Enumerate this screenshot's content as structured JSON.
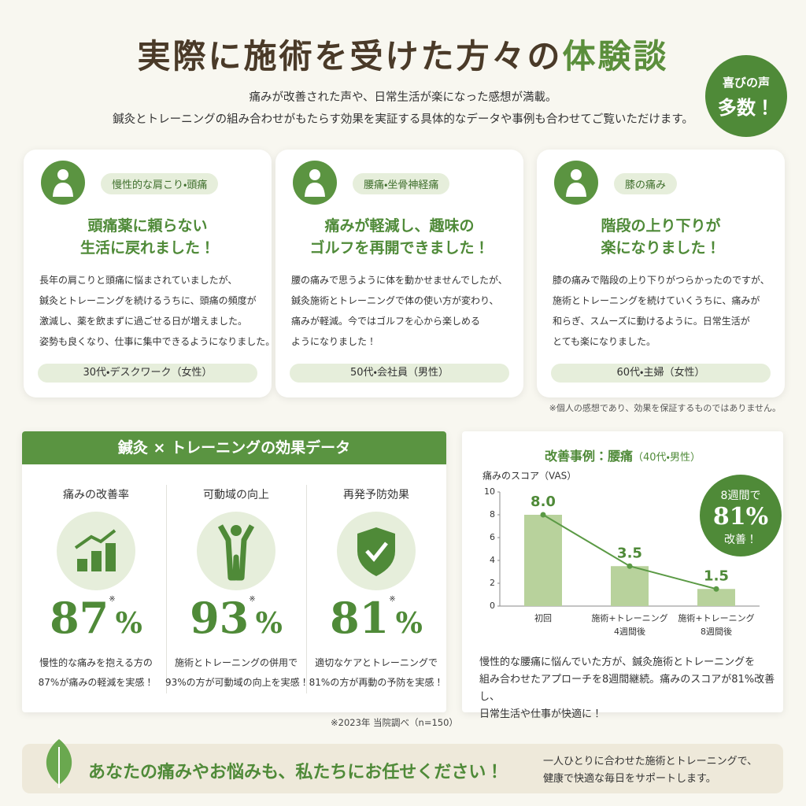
{
  "header": {
    "title": "実際に施術を受けた方々の",
    "title_highlight": "体験談",
    "subtitle_lines": [
      "痛みが改善された声や、日常生活が楽になった感想が満載。",
      "鍼灸とトレーニングの組み合わせがもたらす効果を実証する具体的なデータや事例も合わせてご覧いただけます。"
    ],
    "badge": [
      "喜びの声",
      "多数！"
    ]
  },
  "testimonials": [
    {
      "category": "慢性的な肩こり・頭痛",
      "headline": [
        "頭痛薬に頼らない",
        "生活に戻れました！"
      ],
      "body": [
        "長年の肩こりと頭痛に悩まされていましたが、",
        "鍼灸とトレーニングを続けるうちに、頭痛の頻度が",
        "激減し、薬を飲まずに過ごせる日が増えました。",
        "姿勢も良くなり、仕事に集中できるようになりました。"
      ],
      "profile": "30代・デスクワーク（女性）"
    },
    {
      "category": "腰痛・坐骨神経痛",
      "headline": [
        "痛みが軽減し、趣味の",
        "ゴルフを再開できました！"
      ],
      "body": [
        "腰の痛みで思うように体を動かせませんでしたが、",
        "鍼灸施術とトレーニングで体の使い方が変わり、",
        "痛みが軽減。今ではゴルフを心から楽しめる",
        "ようになりました！"
      ],
      "profile": "50代・会社員（男性）"
    },
    {
      "category": "膝の痛み",
      "headline": [
        "階段の上り下りが",
        "楽になりました！"
      ],
      "body": [
        "膝の痛みで階段の上り下りがつらかったのですが、",
        "施術とトレーニングを続けていくうちに、痛みが",
        "和らぎ、スムーズに動けるように。日常生活が",
        "とても楽になりました。"
      ],
      "profile": "60代・主婦（女性）"
    }
  ],
  "disclaimer": "※個人の感想であり、効果を保証するものではありません。",
  "stats": {
    "title": "鍼灸 × トレーニングの効果データ",
    "items": [
      {
        "label": "痛みの改善率",
        "value": "87",
        "unit": "%",
        "mark": "※",
        "description": [
          "慢性的な痛みを抱える方の",
          "87%が痛みの軽減を実感！"
        ]
      },
      {
        "label": "可動域の向上",
        "value": "93",
        "unit": "%",
        "mark": "※",
        "description": [
          "施術とトレーニングの併用で",
          "93%の方が可動域の向上を実感！"
        ]
      },
      {
        "label": "再発予防効果",
        "value": "81",
        "unit": "%",
        "mark": "※",
        "description": [
          "適切なケアとトレーニングで",
          "81%の方が再動の予防を実感！"
        ]
      }
    ],
    "source": "※2023年 当院調べ（n=150）"
  },
  "case": {
    "title": "改善事例：腰痛",
    "subtitle": "（40代・男性）",
    "badge": [
      "8週間で",
      "81%",
      "改善！"
    ],
    "description": [
      "慢性的な腰痛に悩んでいた方が、鍼灸施術とトレーニングを",
      "組み合わせたアプローチを8週間継続。痛みのスコアが81%改善し、",
      "日常生活や仕事が快適に！"
    ]
  },
  "chart_data": {
    "type": "bar",
    "y_label": "痛みのスコア（VAS）",
    "categories": [
      "初回",
      "施術+トレーニング\n4週間後",
      "施術+トレーニング\n8週間後"
    ],
    "values": [
      8,
      3.5,
      1.5
    ],
    "value_labels": [
      "8.0",
      "3.5",
      "1.5"
    ],
    "color": "#b8d29c",
    "line_color": "#5b9a45",
    "ylim": [
      0,
      10
    ],
    "yticks": [
      0,
      2,
      4,
      6,
      8,
      10
    ]
  },
  "banner": {
    "message": "あなたの痛みやお悩みも、私たちにお任せください！",
    "lines": [
      "一人ひとりに合わせた施術とトレーニングで、",
      "健康で快適な毎日をサポートします。"
    ]
  }
}
